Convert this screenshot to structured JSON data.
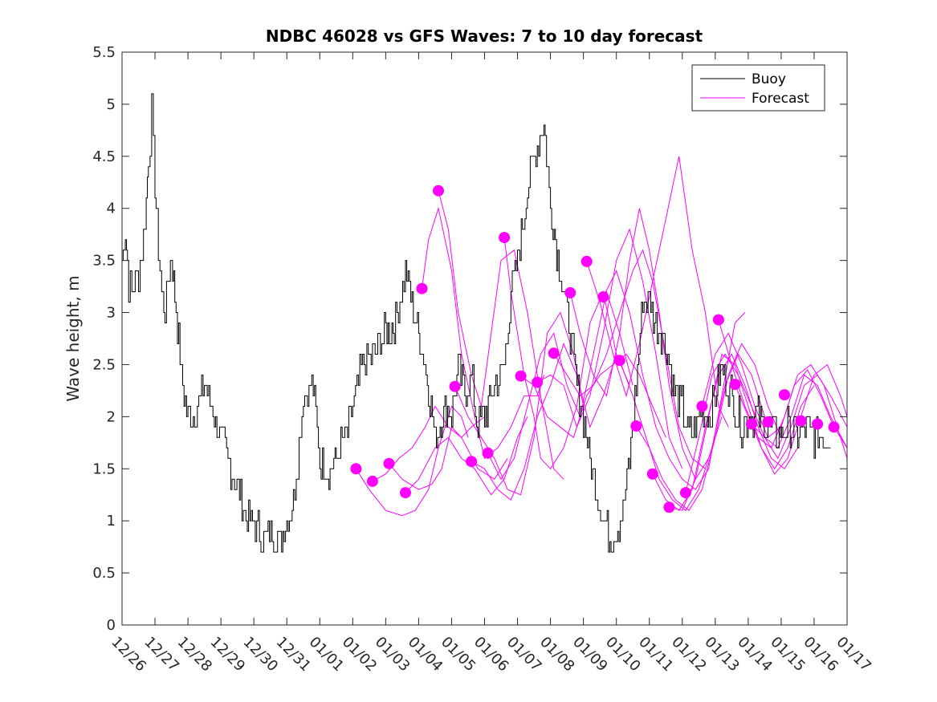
{
  "chart_data": {
    "type": "line",
    "title": "NDBC 46028 vs GFS Waves: 7 to 10 day forecast",
    "xlabel": "",
    "ylabel": "Wave height, m",
    "xlim": [
      0,
      22
    ],
    "ylim": [
      0,
      5.5
    ],
    "yticks": [
      0,
      0.5,
      1,
      1.5,
      2,
      2.5,
      3,
      3.5,
      4,
      4.5,
      5,
      5.5
    ],
    "ytick_labels": [
      "0",
      "0.5",
      "1",
      "1.5",
      "2",
      "2.5",
      "3",
      "3.5",
      "4",
      "4.5",
      "5",
      "5.5"
    ],
    "xticks": [
      0,
      1,
      2,
      3,
      4,
      5,
      6,
      7,
      8,
      9,
      10,
      11,
      12,
      13,
      14,
      15,
      16,
      17,
      18,
      19,
      20,
      21,
      22
    ],
    "xtick_labels": [
      "12/26",
      "12/27",
      "12/28",
      "12/29",
      "12/30",
      "12/31",
      "01/01",
      "01/02",
      "01/03",
      "01/04",
      "01/05",
      "01/06",
      "01/07",
      "01/08",
      "01/09",
      "01/10",
      "01/11",
      "01/12",
      "01/13",
      "01/14",
      "01/15",
      "01/16",
      "01/17"
    ],
    "legend": {
      "position": "top-right",
      "entries": [
        "Buoy",
        "Forecast"
      ]
    },
    "colors": {
      "buoy": "#000000",
      "forecast": "#ff00ff"
    },
    "buoy": {
      "name": "Buoy",
      "x": [
        0,
        0.1,
        0.2,
        0.3,
        0.4,
        0.5,
        0.6,
        0.7,
        0.8,
        0.9,
        1.0,
        1.1,
        1.2,
        1.3,
        1.4,
        1.5,
        1.6,
        1.8,
        2.0,
        2.2,
        2.5,
        2.8,
        3.0,
        3.3,
        3.6,
        3.8,
        4.0,
        4.3,
        4.6,
        4.8,
        5.0,
        5.2,
        5.5,
        5.8,
        6.0,
        6.2,
        6.35,
        6.5,
        6.6,
        6.8,
        7.0,
        7.3,
        7.6,
        8.0,
        8.3,
        8.6,
        9.0,
        9.3,
        9.5,
        9.8,
        10.0,
        10.2,
        10.4,
        10.6,
        10.8,
        11.0,
        11.3,
        11.6,
        11.8,
        12.0,
        12.3,
        12.6,
        12.8,
        13.0,
        13.3,
        13.6,
        13.8,
        14.0,
        14.2,
        14.4,
        14.6,
        14.8,
        15.0,
        15.2,
        15.4,
        15.6,
        15.8,
        16.0,
        16.2,
        16.4,
        16.6,
        16.8,
        17.0,
        17.2,
        17.4,
        17.6,
        17.8,
        18.0,
        18.2,
        18.4,
        18.6,
        18.8,
        19.0,
        19.3,
        19.6,
        19.9,
        20.2,
        20.5,
        20.8,
        21.0,
        21.2,
        21.5
      ],
      "y": [
        3.5,
        3.8,
        3.3,
        3.2,
        3.3,
        3.4,
        3.6,
        3.9,
        4.5,
        4.9,
        4.2,
        3.6,
        3.2,
        3.0,
        3.3,
        3.6,
        3.2,
        2.4,
        2.0,
        2.0,
        2.3,
        2.0,
        1.8,
        1.5,
        1.2,
        1.0,
        1.0,
        0.8,
        0.9,
        0.8,
        1.0,
        1.2,
        2.2,
        2.3,
        1.6,
        1.5,
        1.5,
        1.6,
        1.7,
        1.8,
        2.1,
        2.5,
        2.6,
        2.8,
        2.9,
        3.4,
        2.8,
        2.3,
        1.8,
        2.1,
        2.0,
        2.5,
        2.2,
        2.4,
        1.9,
        2.0,
        2.3,
        2.5,
        3.2,
        3.5,
        4.2,
        4.6,
        4.8,
        4.0,
        3.4,
        2.8,
        2.3,
        2.0,
        1.6,
        1.3,
        1.0,
        0.85,
        0.9,
        1.1,
        1.6,
        2.3,
        3.1,
        3.1,
        2.9,
        2.8,
        2.5,
        2.2,
        2.1,
        1.8,
        1.9,
        2.1,
        2.0,
        2.2,
        2.5,
        2.3,
        2.1,
        1.9,
        2.0,
        2.0,
        1.9,
        1.8,
        1.9,
        1.8,
        1.9,
        1.8,
        1.8,
        1.8
      ]
    },
    "forecast_markers": {
      "x": [
        7.1,
        7.6,
        8.1,
        8.6,
        9.1,
        9.6,
        10.1,
        10.6,
        11.1,
        11.6,
        12.1,
        12.6,
        13.1,
        13.6,
        14.1,
        14.6,
        15.1,
        15.6,
        16.1,
        16.6,
        17.1,
        17.6,
        18.1,
        18.6,
        19.1,
        19.6,
        20.1,
        20.6,
        21.1,
        21.6
      ],
      "y": [
        1.5,
        1.38,
        1.55,
        1.27,
        3.23,
        4.17,
        2.29,
        1.57,
        1.65,
        3.72,
        2.39,
        2.33,
        2.61,
        3.19,
        3.49,
        3.15,
        2.54,
        1.91,
        1.45,
        1.13,
        1.27,
        2.1,
        2.93,
        2.31,
        1.93,
        1.95,
        2.21,
        1.96,
        1.93,
        1.9
      ]
    },
    "forecast": [
      {
        "name": "Forecast",
        "x": [
          7.1,
          7.5,
          8.0,
          8.5,
          8.9,
          9.3,
          9.6,
          10.0,
          10.3,
          10.5
        ],
        "y": [
          1.5,
          1.3,
          1.1,
          1.05,
          1.1,
          1.3,
          1.7,
          2.1,
          2.0,
          1.8
        ]
      },
      {
        "name": "Forecast",
        "x": [
          7.6,
          8.0,
          8.4,
          8.8,
          9.2,
          9.5,
          9.9,
          10.3,
          10.6,
          11.0
        ],
        "y": [
          1.38,
          1.45,
          1.6,
          1.7,
          1.9,
          2.1,
          1.9,
          1.8,
          1.9,
          2.0
        ]
      },
      {
        "name": "Forecast",
        "x": [
          8.1,
          8.5,
          9.0,
          9.4,
          9.7,
          10.0,
          10.3,
          10.8,
          11.3,
          11.7
        ],
        "y": [
          1.55,
          1.4,
          1.3,
          1.35,
          1.5,
          1.9,
          1.8,
          1.5,
          1.4,
          1.6
        ]
      },
      {
        "name": "Forecast",
        "x": [
          8.6,
          9.0,
          9.5,
          9.9,
          10.3,
          10.7,
          11.2,
          11.6,
          12.0,
          12.3
        ],
        "y": [
          1.27,
          1.4,
          1.7,
          1.8,
          1.6,
          1.5,
          1.25,
          1.4,
          1.8,
          2.0
        ]
      },
      {
        "name": "Forecast",
        "x": [
          9.1,
          9.3,
          9.6,
          10.0,
          10.3,
          10.7,
          11.0,
          11.4,
          11.8,
          12.2,
          12.6,
          12.8
        ],
        "y": [
          3.23,
          3.7,
          4.0,
          3.4,
          2.6,
          2.0,
          1.6,
          1.7,
          1.9,
          2.2,
          2.2,
          2.4
        ]
      },
      {
        "name": "Forecast",
        "x": [
          9.6,
          9.9,
          10.2,
          10.6,
          10.9,
          11.2,
          11.5,
          11.9,
          12.3,
          12.7,
          13.1,
          13.4
        ],
        "y": [
          4.17,
          3.8,
          3.0,
          2.4,
          2.1,
          2.8,
          3.5,
          3.6,
          3.0,
          2.2,
          1.5,
          1.4
        ]
      },
      {
        "name": "Forecast",
        "x": [
          10.1,
          10.5,
          10.9,
          11.3,
          11.7,
          12.1,
          12.5,
          12.9,
          13.3,
          13.7,
          14.0
        ],
        "y": [
          2.29,
          2.0,
          1.8,
          1.6,
          1.3,
          1.25,
          1.8,
          2.8,
          3.0,
          2.6,
          2.1
        ]
      },
      {
        "name": "Forecast",
        "x": [
          10.6,
          11.0,
          11.4,
          11.8,
          12.2,
          12.6,
          13.0,
          13.4,
          13.8,
          14.2,
          14.6,
          15.0
        ],
        "y": [
          1.57,
          1.5,
          1.3,
          1.2,
          1.5,
          2.0,
          2.3,
          2.7,
          2.4,
          1.9,
          2.2,
          2.6
        ]
      },
      {
        "name": "Forecast",
        "x": [
          11.1,
          11.5,
          11.9,
          12.3,
          12.7,
          13.1,
          13.5,
          13.9,
          14.3,
          14.7,
          15.1,
          15.5
        ],
        "y": [
          1.65,
          1.4,
          1.6,
          2.1,
          2.6,
          2.8,
          2.3,
          2.0,
          2.6,
          3.2,
          2.8,
          2.3
        ]
      },
      {
        "name": "Forecast",
        "x": [
          11.6,
          11.8,
          12.2,
          12.5,
          12.7,
          13.0,
          13.4,
          13.8,
          14.2,
          14.6,
          15.0,
          15.4
        ],
        "y": [
          3.72,
          3.2,
          2.4,
          2.0,
          1.6,
          1.5,
          1.7,
          2.1,
          2.9,
          3.2,
          2.6,
          2.3
        ]
      },
      {
        "name": "Forecast",
        "x": [
          12.1,
          12.5,
          12.9,
          13.3,
          13.7,
          14.1,
          14.5,
          14.9,
          15.3,
          15.7,
          16.1,
          16.5
        ],
        "y": [
          2.39,
          2.3,
          2.0,
          1.9,
          1.8,
          2.2,
          2.4,
          2.5,
          2.6,
          2.4,
          2.1,
          1.8
        ]
      },
      {
        "name": "Forecast",
        "x": [
          12.6,
          13.0,
          13.4,
          13.8,
          14.2,
          14.6,
          15.0,
          15.4,
          15.8,
          16.2,
          16.6,
          17.0
        ],
        "y": [
          2.33,
          2.4,
          2.3,
          1.9,
          2.2,
          2.8,
          3.5,
          3.8,
          3.3,
          2.6,
          1.8,
          1.5
        ]
      },
      {
        "name": "Forecast",
        "x": [
          13.1,
          13.5,
          13.9,
          14.3,
          14.7,
          15.1,
          15.5,
          15.8,
          16.1,
          16.5,
          16.9,
          17.3,
          17.7
        ],
        "y": [
          2.61,
          2.4,
          2.2,
          2.3,
          2.6,
          3.0,
          3.4,
          3.6,
          3.3,
          2.6,
          1.9,
          1.6,
          1.5
        ]
      },
      {
        "name": "Forecast",
        "x": [
          13.6,
          13.9,
          14.3,
          14.7,
          15.1,
          15.4,
          15.7,
          16.0,
          16.3,
          16.6,
          17.0,
          17.4,
          17.8,
          18.2
        ],
        "y": [
          3.19,
          2.8,
          2.4,
          2.2,
          2.8,
          3.5,
          4.0,
          3.6,
          3.0,
          2.3,
          1.7,
          1.4,
          1.6,
          2.0
        ]
      },
      {
        "name": "Forecast",
        "x": [
          14.1,
          14.5,
          14.9,
          15.3,
          15.7,
          16.1,
          16.5,
          16.9,
          17.3,
          17.7,
          18.1,
          18.4
        ],
        "y": [
          3.49,
          3.1,
          2.6,
          2.2,
          2.7,
          3.3,
          3.9,
          4.5,
          3.6,
          3.0,
          2.1,
          1.9
        ]
      },
      {
        "name": "Forecast",
        "x": [
          14.6,
          15.0,
          15.4,
          15.8,
          16.2,
          16.6,
          17.0,
          17.4,
          17.8,
          18.2,
          18.6,
          18.9
        ],
        "y": [
          3.15,
          3.4,
          3.0,
          2.4,
          1.9,
          1.6,
          1.4,
          1.3,
          1.5,
          2.2,
          2.9,
          3.0
        ]
      },
      {
        "name": "Forecast",
        "x": [
          15.1,
          15.5,
          15.9,
          16.3,
          16.7,
          17.1,
          17.5,
          17.9,
          18.3,
          18.7,
          19.1,
          19.5
        ],
        "y": [
          2.54,
          2.2,
          1.8,
          1.4,
          1.2,
          1.1,
          1.3,
          1.7,
          2.3,
          2.6,
          2.4,
          2.0
        ]
      },
      {
        "name": "Forecast",
        "x": [
          15.6,
          16.0,
          16.4,
          16.8,
          17.2,
          17.6,
          18.0,
          18.4,
          18.8,
          19.2,
          19.6,
          20.0
        ],
        "y": [
          1.91,
          1.7,
          1.4,
          1.2,
          1.1,
          1.3,
          1.8,
          2.4,
          2.7,
          2.5,
          2.1,
          1.8
        ]
      },
      {
        "name": "Forecast",
        "x": [
          16.1,
          16.5,
          16.9,
          17.3,
          17.7,
          18.1,
          18.5,
          18.9,
          19.3,
          19.7,
          20.1,
          20.5
        ],
        "y": [
          1.45,
          1.2,
          1.1,
          1.3,
          1.9,
          2.4,
          2.6,
          2.3,
          1.9,
          1.6,
          1.5,
          1.7
        ]
      },
      {
        "name": "Forecast",
        "x": [
          16.6,
          17.0,
          17.4,
          17.8,
          18.2,
          18.6,
          19.0,
          19.4,
          19.8,
          20.2,
          20.6,
          21.0
        ],
        "y": [
          1.13,
          1.1,
          1.4,
          2.0,
          2.6,
          2.5,
          2.1,
          1.7,
          1.5,
          1.7,
          2.1,
          2.3
        ]
      },
      {
        "name": "Forecast",
        "x": [
          17.1,
          17.5,
          17.9,
          18.3,
          18.7,
          19.1,
          19.5,
          19.9,
          20.3,
          20.7,
          21.1,
          21.5,
          22.0
        ],
        "y": [
          1.27,
          1.8,
          2.4,
          2.6,
          2.4,
          2.1,
          1.8,
          1.6,
          1.9,
          2.3,
          2.4,
          2.2,
          1.9
        ]
      },
      {
        "name": "Forecast",
        "x": [
          17.6,
          18.0,
          18.4,
          18.8,
          19.2,
          19.6,
          20.0,
          20.4,
          20.8,
          21.2,
          21.6,
          22.0
        ],
        "y": [
          2.1,
          2.6,
          2.8,
          2.5,
          2.1,
          1.8,
          1.9,
          2.3,
          2.45,
          2.2,
          1.9,
          1.7
        ]
      },
      {
        "name": "Forecast",
        "x": [
          18.1,
          18.5,
          18.9,
          19.3,
          19.7,
          20.1,
          20.5,
          20.9,
          21.3,
          21.7,
          22.0
        ],
        "y": [
          2.93,
          2.5,
          2.1,
          1.8,
          1.7,
          2.0,
          2.4,
          2.5,
          2.3,
          1.9,
          1.6
        ]
      },
      {
        "name": "Forecast",
        "x": [
          18.6,
          19.0,
          19.4,
          19.8,
          20.2,
          20.6,
          21.0,
          21.4,
          21.8,
          22.0
        ],
        "y": [
          2.31,
          2.0,
          1.7,
          1.45,
          1.6,
          2.0,
          2.4,
          2.5,
          2.2,
          2.0
        ]
      },
      {
        "name": "Forecast",
        "x": [
          19.1,
          19.5,
          19.9,
          20.3,
          20.7,
          21.1,
          21.5,
          22.0
        ],
        "y": [
          1.93,
          1.8,
          1.7,
          2.0,
          2.4,
          2.3,
          2.0,
          1.7
        ]
      }
    ]
  }
}
